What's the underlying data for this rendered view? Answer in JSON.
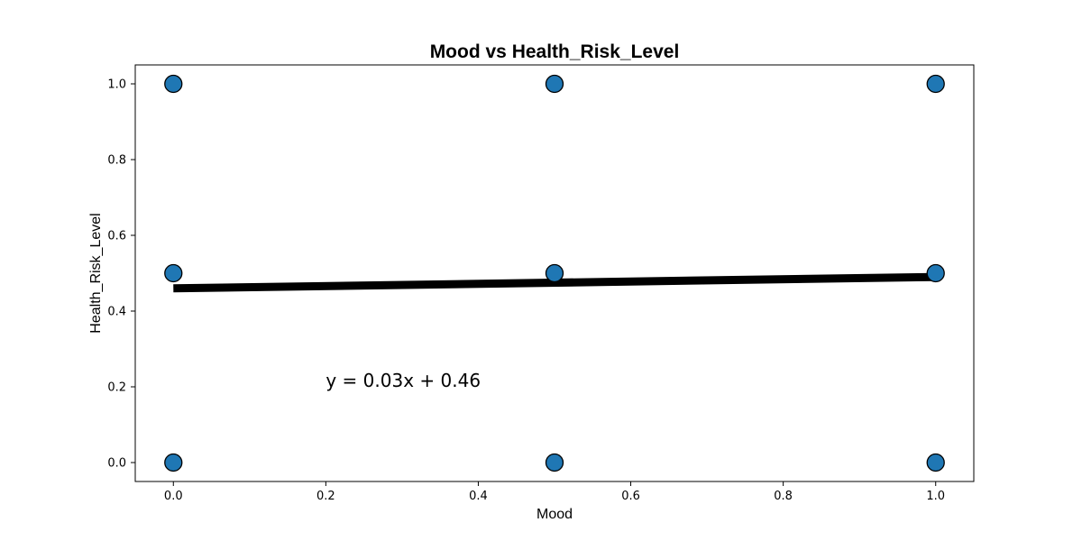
{
  "chart_data": {
    "type": "scatter",
    "title": "Mood vs Health_Risk_Level",
    "xlabel": "Mood",
    "ylabel": "Health_Risk_Level",
    "xlim": [
      -0.05,
      1.05
    ],
    "ylim": [
      -0.05,
      1.05
    ],
    "xticks": [
      "0.0",
      "0.2",
      "0.4",
      "0.6",
      "0.8",
      "1.0"
    ],
    "yticks": [
      "0.0",
      "0.2",
      "0.4",
      "0.6",
      "0.8",
      "1.0"
    ],
    "grid": false,
    "series": [
      {
        "color": "#1f77b4",
        "points": [
          {
            "x": 0.0,
            "y": 0.0
          },
          {
            "x": 0.0,
            "y": 0.5
          },
          {
            "x": 0.0,
            "y": 1.0
          },
          {
            "x": 0.5,
            "y": 0.0
          },
          {
            "x": 0.5,
            "y": 0.5
          },
          {
            "x": 0.5,
            "y": 1.0
          },
          {
            "x": 1.0,
            "y": 0.0
          },
          {
            "x": 1.0,
            "y": 0.5
          },
          {
            "x": 1.0,
            "y": 1.0
          }
        ]
      }
    ],
    "trendline": {
      "slope": 0.03,
      "intercept": 0.46,
      "x_range": [
        0.0,
        1.0
      ],
      "color": "#000000"
    },
    "annotation": {
      "text": "y = 0.03x + 0.46",
      "x": 0.2,
      "y": 0.2
    }
  }
}
